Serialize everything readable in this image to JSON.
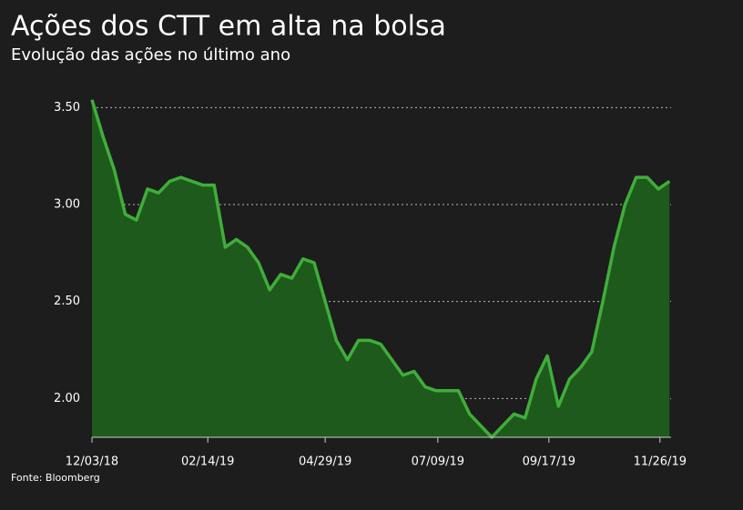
{
  "chart_data": {
    "type": "area",
    "title": "Ações dos CTT em alta na bolsa",
    "subtitle": "Evolução das ações no último ano",
    "source": "Fonte: Bloomberg",
    "color": "#3fae3a",
    "fill_color": "#1e5a1c",
    "x": [
      "2018-12-03",
      "2018-12-10",
      "2018-12-17",
      "2018-12-24",
      "2018-12-31",
      "2019-01-07",
      "2019-01-14",
      "2019-01-21",
      "2019-01-28",
      "2019-02-04",
      "2019-02-11",
      "2019-02-18",
      "2019-02-25",
      "2019-03-04",
      "2019-03-11",
      "2019-03-18",
      "2019-03-25",
      "2019-04-01",
      "2019-04-08",
      "2019-04-15",
      "2019-04-22",
      "2019-04-29",
      "2019-05-06",
      "2019-05-13",
      "2019-05-20",
      "2019-05-27",
      "2019-06-03",
      "2019-06-10",
      "2019-06-17",
      "2019-06-24",
      "2019-07-01",
      "2019-07-08",
      "2019-07-15",
      "2019-07-22",
      "2019-07-29",
      "2019-08-05",
      "2019-08-12",
      "2019-08-19",
      "2019-08-26",
      "2019-09-02",
      "2019-09-09",
      "2019-09-16",
      "2019-09-23",
      "2019-09-30",
      "2019-10-07",
      "2019-10-14",
      "2019-10-21",
      "2019-10-28",
      "2019-11-04",
      "2019-11-11",
      "2019-11-18",
      "2019-11-25",
      "2019-12-02"
    ],
    "values": [
      3.54,
      3.35,
      3.18,
      2.95,
      2.92,
      3.08,
      3.06,
      3.12,
      3.14,
      3.12,
      3.1,
      3.1,
      2.78,
      2.82,
      2.78,
      2.7,
      2.56,
      2.64,
      2.62,
      2.72,
      2.7,
      2.5,
      2.3,
      2.2,
      2.3,
      2.3,
      2.28,
      2.2,
      2.12,
      2.14,
      2.06,
      2.04,
      2.04,
      2.04,
      1.92,
      1.86,
      1.8,
      1.86,
      1.92,
      1.9,
      2.1,
      2.22,
      1.96,
      2.1,
      2.16,
      2.24,
      2.5,
      2.78,
      3.0,
      3.14,
      3.14,
      3.08,
      3.12
    ],
    "xlim": [
      "2018-12-03",
      "2019-12-03"
    ],
    "xticks": [
      {
        "value": "2018-12-03",
        "label": "12/03/18"
      },
      {
        "value": "2019-02-14",
        "label": "02/14/19"
      },
      {
        "value": "2019-04-29",
        "label": "04/29/19"
      },
      {
        "value": "2019-07-09",
        "label": "07/09/19"
      },
      {
        "value": "2019-09-17",
        "label": "09/17/19"
      },
      {
        "value": "2019-11-26",
        "label": "11/26/19"
      }
    ],
    "ylim": [
      1.8,
      3.6
    ],
    "yticks": [
      {
        "value": 2,
        "label": "2.00"
      },
      {
        "value": 2.5,
        "label": "2.50"
      },
      {
        "value": 3,
        "label": "3.00"
      },
      {
        "value": 3.5,
        "label": "3.50"
      }
    ],
    "grid": true
  }
}
